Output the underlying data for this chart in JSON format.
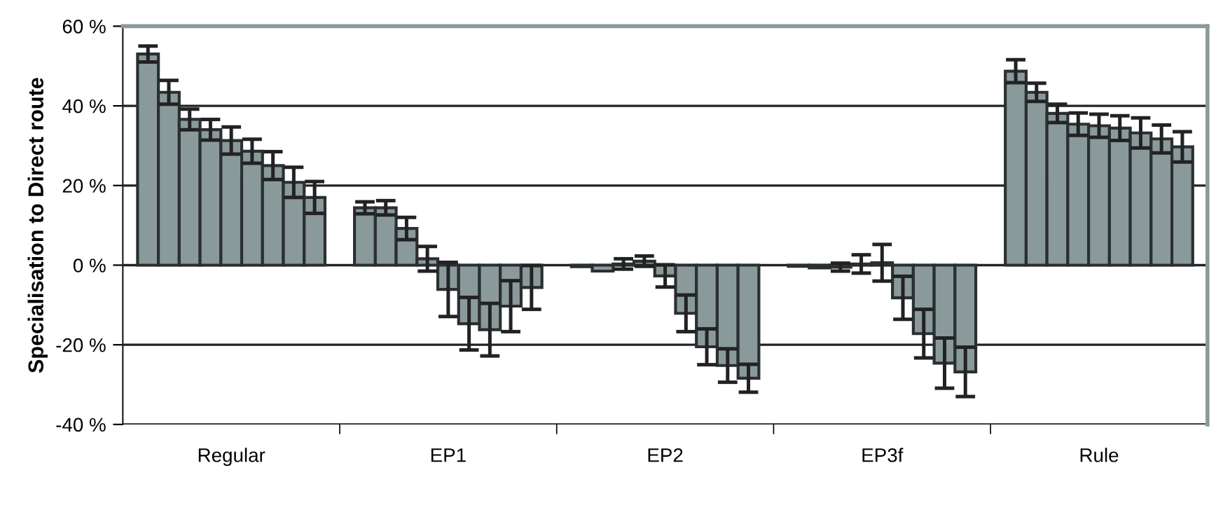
{
  "chart_data": {
    "type": "bar",
    "ylabel": "Specialisation to Direct route",
    "categories": [
      "Regular",
      "EP1",
      "EP2",
      "EP3f",
      "Rule"
    ],
    "series": [
      {
        "color": "#8a9a9b",
        "values": [
          53.0,
          14.4,
          -0.4,
          -0.3,
          48.7
        ],
        "errors": [
          2.0,
          1.5,
          null,
          null,
          2.9
        ]
      },
      {
        "color": "#8a9a9b",
        "values": [
          43.4,
          14.4,
          -1.5,
          -0.7,
          43.4
        ],
        "errors": [
          3.0,
          1.8,
          null,
          null,
          2.3
        ]
      },
      {
        "color": "#8a9a9b",
        "values": [
          36.6,
          9.2,
          0.3,
          -0.5,
          38.1
        ],
        "errors": [
          2.6,
          2.8,
          1.3,
          1.0,
          2.3
        ]
      },
      {
        "color": "#8a9a9b",
        "values": [
          34.0,
          1.6,
          1.0,
          0.3,
          35.4
        ],
        "errors": [
          2.6,
          3.1,
          1.3,
          2.3,
          2.8
        ]
      },
      {
        "color": "#8a9a9b",
        "values": [
          31.3,
          -6.1,
          -2.7,
          0.6,
          35.0
        ],
        "errors": [
          3.4,
          6.8,
          2.8,
          4.6,
          2.9
        ]
      },
      {
        "color": "#8a9a9b",
        "values": [
          28.6,
          -14.7,
          -12.1,
          -8.2,
          34.4
        ],
        "errors": [
          3.0,
          6.6,
          4.6,
          5.4,
          3.1
        ]
      },
      {
        "color": "#8a9a9b",
        "values": [
          25.0,
          -16.2,
          -20.5,
          -17.2,
          33.2
        ],
        "errors": [
          3.5,
          6.6,
          4.5,
          6.1,
          3.8
        ]
      },
      {
        "color": "#8a9a9b",
        "values": [
          20.8,
          -10.3,
          -25.2,
          -24.6,
          31.7
        ],
        "errors": [
          3.8,
          6.4,
          4.2,
          6.3,
          3.5
        ]
      },
      {
        "color": "#8a9a9b",
        "values": [
          17.0,
          -5.6,
          -28.4,
          -26.8,
          29.7
        ],
        "errors": [
          4.0,
          5.5,
          3.5,
          6.2,
          3.8
        ]
      }
    ],
    "ylim": [
      -40,
      60
    ],
    "yticks": [
      {
        "value": -40,
        "label": "-40 %"
      },
      {
        "value": -20,
        "label": "-20 %"
      },
      {
        "value": 0,
        "label": "0 %"
      },
      {
        "value": 20,
        "label": "20 %"
      },
      {
        "value": 40,
        "label": "40 %"
      },
      {
        "value": 60,
        "label": "60 %"
      }
    ],
    "grid": "y",
    "legend": false
  }
}
